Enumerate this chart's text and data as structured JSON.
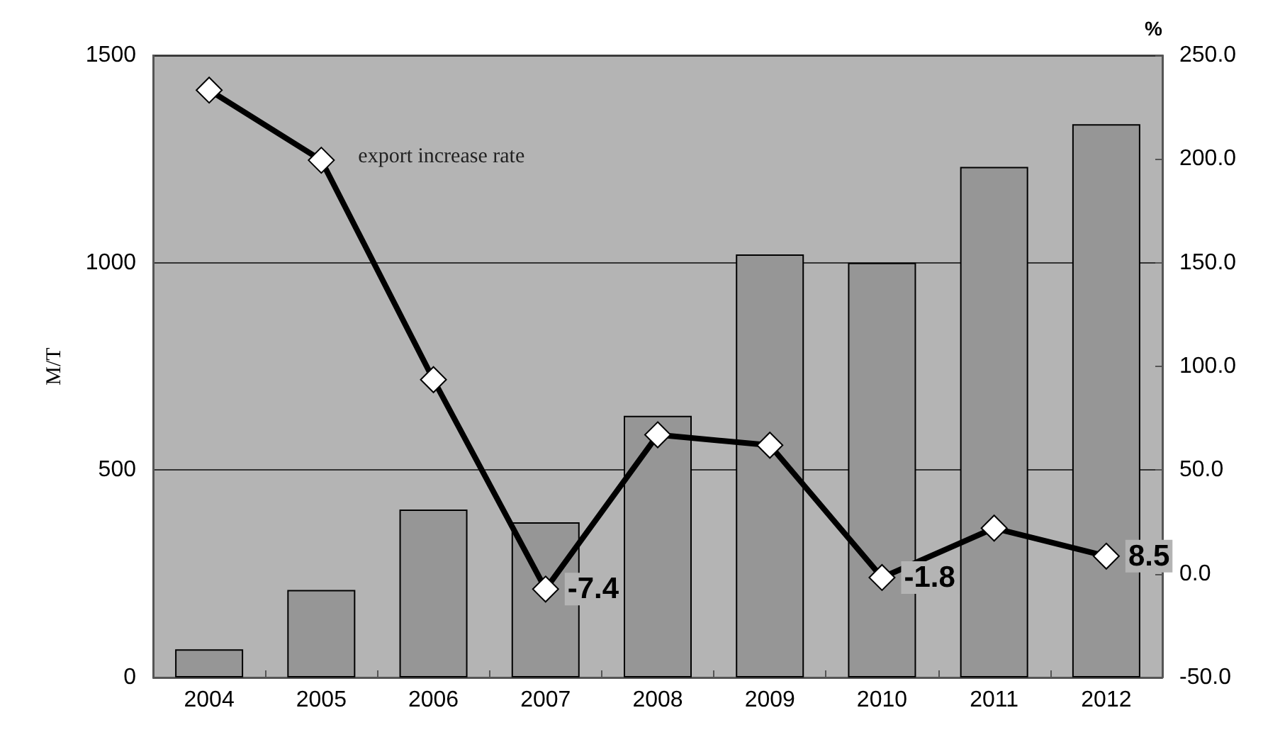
{
  "chart_data": {
    "type": "bar",
    "ylabel": "M/T",
    "y2label": "%",
    "categories": [
      "2004",
      "2005",
      "2006",
      "2007",
      "2008",
      "2009",
      "2010",
      "2011",
      "2012"
    ],
    "series": [
      {
        "color": "#969696",
        "values": [
          68,
          211,
          405,
          374,
          631,
          1020,
          1000,
          1231,
          1334
        ]
      },
      {
        "type": "line",
        "name": "export increase rate",
        "axis": "y2",
        "color": "#000000",
        "marker": "diamond",
        "values": [
          233.2,
          199.4,
          93.6,
          -7.4,
          67,
          62,
          -1.8,
          22,
          8.5
        ],
        "value_labels": [
          null,
          null,
          null,
          "-7.4",
          null,
          null,
          "-1.8",
          null,
          "8.5"
        ]
      }
    ],
    "ylim": [
      0,
      1500
    ],
    "yticks": [
      0,
      500,
      1000,
      1500
    ],
    "y2lim": [
      -50,
      250
    ],
    "y2ticks": [
      {
        "value": -50,
        "label": "-50.0"
      },
      {
        "value": 0,
        "label": "0.0"
      },
      {
        "value": 50,
        "label": "50.0"
      },
      {
        "value": 100,
        "label": "100.0"
      },
      {
        "value": 150,
        "label": "150.0"
      },
      {
        "value": 200,
        "label": "200.0"
      },
      {
        "value": 250,
        "label": "250.0"
      }
    ],
    "grid": "y",
    "legend": false
  }
}
